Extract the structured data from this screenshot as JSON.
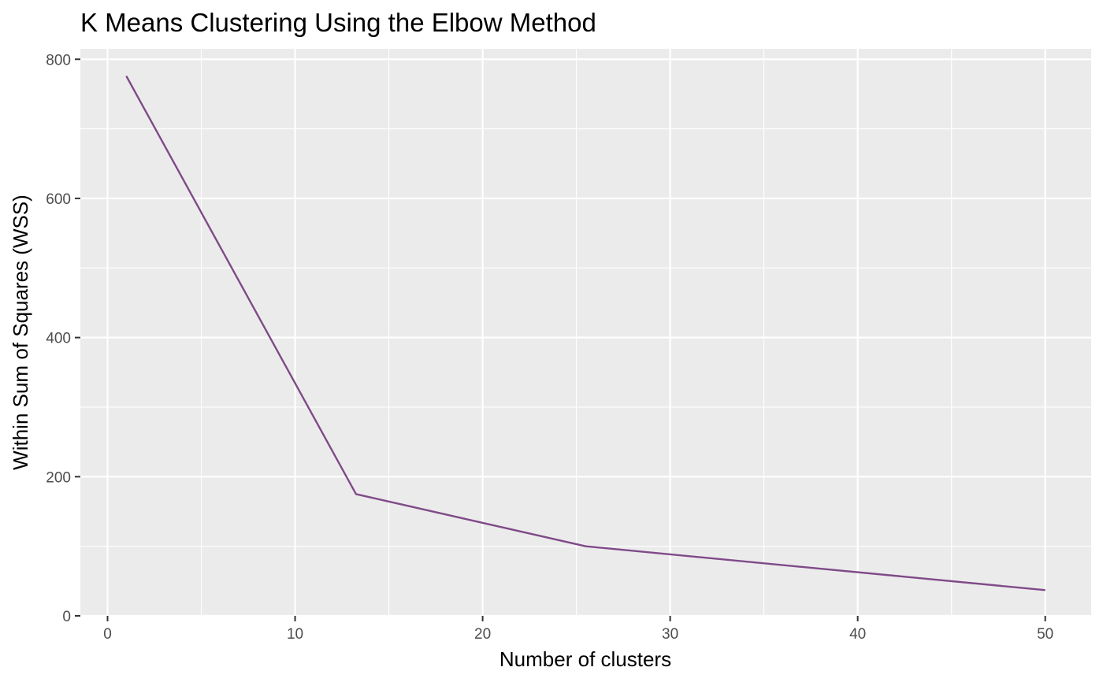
{
  "chart_data": {
    "type": "line",
    "title": "K Means Clustering Using the Elbow Method",
    "xlabel": "Number of clusters",
    "ylabel": "Within Sum of Squares (WSS)",
    "xlim": [
      -1.45,
      52.45
    ],
    "ylim": [
      0,
      815
    ],
    "x_ticks": [
      0,
      10,
      20,
      30,
      40,
      50
    ],
    "x_minor_ticks": [
      5,
      15,
      25,
      35,
      45
    ],
    "y_ticks": [
      0,
      200,
      400,
      600,
      800
    ],
    "y_minor_ticks": [
      100,
      300,
      500,
      700
    ],
    "grid": true,
    "background": "#ebebeb",
    "series": [
      {
        "color": "#7f4a88",
        "points": [
          {
            "x": 1,
            "y": 776
          },
          {
            "x": 13.25,
            "y": 175
          },
          {
            "x": 25.5,
            "y": 100
          },
          {
            "x": 50,
            "y": 37
          }
        ]
      }
    ]
  }
}
